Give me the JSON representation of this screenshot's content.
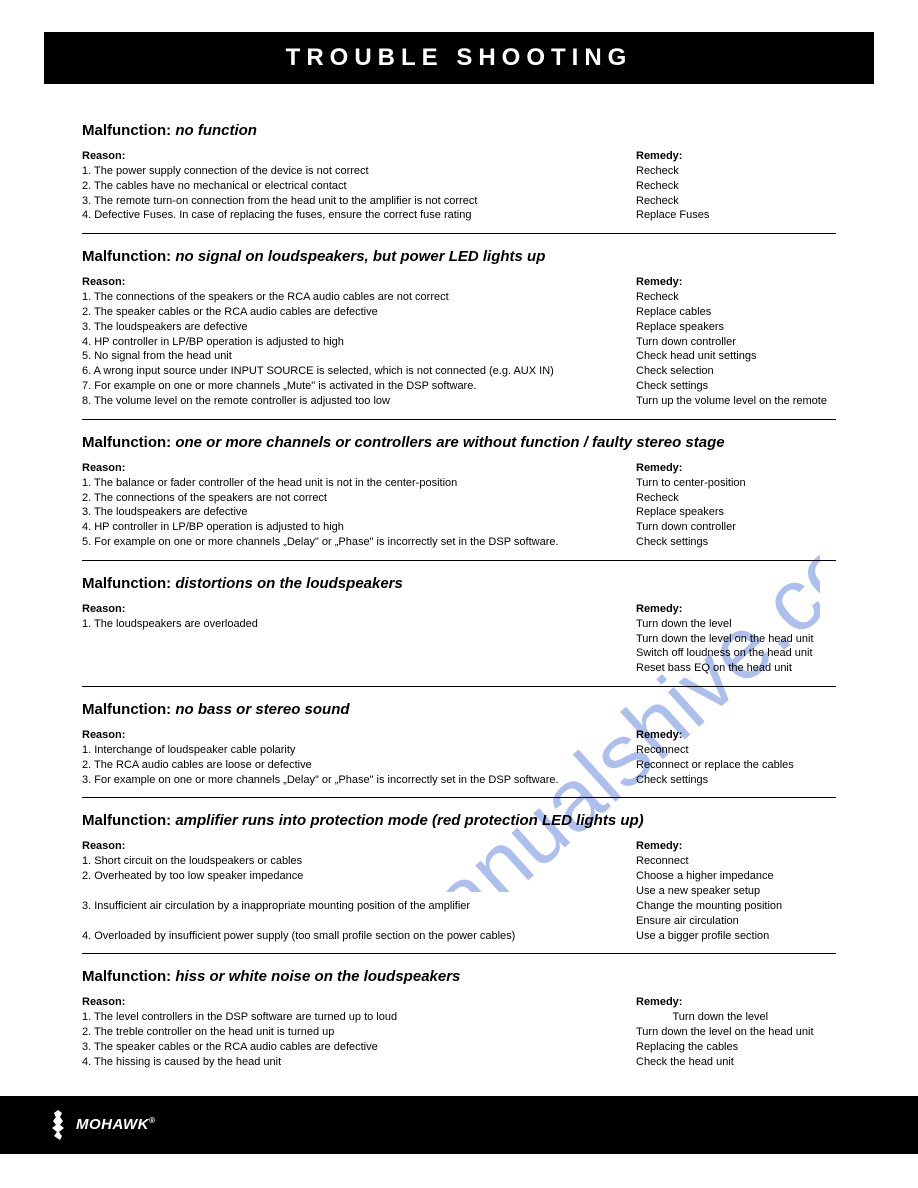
{
  "header": {
    "title": "TROUBLE SHOOTING"
  },
  "labels": {
    "malfunction_prefix": "Malfunction: ",
    "reason_head": "Reason:",
    "remedy_head": "Remedy:"
  },
  "sections": [
    {
      "title": "no function",
      "rows": [
        {
          "reason": "1. The power supply connection of the device is not correct",
          "remedy": "Recheck"
        },
        {
          "reason": "2. The cables have no mechanical or electrical contact",
          "remedy": "Recheck"
        },
        {
          "reason": "3. The remote turn-on connection from the head unit to the amplifier is not correct",
          "remedy": "Recheck"
        },
        {
          "reason": "4. Defective Fuses. In case of replacing the fuses, ensure the correct fuse rating",
          "remedy": "Replace Fuses"
        }
      ]
    },
    {
      "title": "no signal on loudspeakers, but power LED lights up",
      "rows": [
        {
          "reason": "1. The connections of the speakers or the RCA audio cables are not correct",
          "remedy": "Recheck"
        },
        {
          "reason": "2. The speaker cables or the RCA audio cables are defective",
          "remedy": "Replace cables"
        },
        {
          "reason": "3. The loudspeakers are defective",
          "remedy": "Replace speakers"
        },
        {
          "reason": "4. HP controller in LP/BP operation is adjusted to high",
          "remedy": "Turn down controller"
        },
        {
          "reason": "5. No signal from the head unit",
          "remedy": "Check head unit settings"
        },
        {
          "reason": "6. A wrong input source under INPUT SOURCE is selected, which is not connected (e.g. AUX IN)",
          "remedy": "Check selection"
        },
        {
          "reason": "7. For example on one or more channels „Mute\" is activated in the DSP software.",
          "remedy": "Check settings"
        },
        {
          "reason": "8. The volume level on the remote controller is adjusted too low",
          "remedy": "Turn up the volume level on the remote"
        }
      ]
    },
    {
      "title": "one or more channels or controllers are without function / faulty stereo stage",
      "rows": [
        {
          "reason": "1. The balance or fader controller of the head unit is not in the center-position",
          "remedy": "Turn to center-position"
        },
        {
          "reason": "2. The connections of the speakers are not correct",
          "remedy": "Recheck"
        },
        {
          "reason": "3. The loudspeakers are defective",
          "remedy": "Replace speakers"
        },
        {
          "reason": "4. HP controller in LP/BP operation is adjusted to high",
          "remedy": "Turn down controller"
        },
        {
          "reason": "5. For example on one or more channels „Delay\" or „Phase\" is incorrectly set in the DSP software.",
          "remedy": "Check settings"
        }
      ]
    },
    {
      "title": "distortions on the loudspeakers",
      "rows": [
        {
          "reason": "1. The loudspeakers are overloaded",
          "remedy": "Turn down the level"
        },
        {
          "reason": "",
          "remedy": "Turn down the level on the head unit"
        },
        {
          "reason": "",
          "remedy": "Switch off loudness on the head unit"
        },
        {
          "reason": "",
          "remedy": "Reset bass EQ on the head unit"
        }
      ]
    },
    {
      "title": "no bass or stereo sound",
      "rows": [
        {
          "reason": "1. Interchange of loudspeaker cable polarity",
          "remedy": "Reconnect"
        },
        {
          "reason": "2. The RCA audio cables are loose or defective",
          "remedy": "Reconnect or replace the cables"
        },
        {
          "reason": "3. For example on one or more channels „Delay\" or „Phase\" is incorrectly set in the DSP software.",
          "remedy": "Check settings"
        }
      ]
    },
    {
      "title": "amplifier runs into protection mode (red protection LED lights up)",
      "rows": [
        {
          "reason": "1. Short circuit on the loudspeakers or cables",
          "remedy": "Reconnect"
        },
        {
          "reason": "2. Overheated by too low speaker impedance",
          "remedy": "Choose a higher impedance"
        },
        {
          "reason": "",
          "remedy": "Use a new speaker setup"
        },
        {
          "reason": "3. Insufficient air circulation by a inappropriate mounting position of the amplifier",
          "remedy": "Change the mounting position"
        },
        {
          "reason": "",
          "remedy": "Ensure air circulation"
        },
        {
          "reason": "4. Overloaded by insufficient power supply (too small profile section on the power cables)",
          "remedy": "Use a bigger profile section"
        }
      ]
    },
    {
      "title": "hiss or white noise on the loudspeakers",
      "rows": [
        {
          "reason": "1. The level controllers in the DSP software are turned up to loud",
          "remedy": "            Turn down the level"
        },
        {
          "reason": "2. The treble controller on the head unit is turned up",
          "remedy": "Turn down the level on the head unit"
        },
        {
          "reason": "3. The speaker cables or the RCA audio cables are defective",
          "remedy": "Replacing the cables"
        },
        {
          "reason": "4. The hissing is caused by the head unit",
          "remedy": "Check the head unit"
        }
      ],
      "no_divider": true
    }
  ],
  "footer": {
    "brand": "MOHAWK",
    "reg": "®"
  },
  "watermark": {
    "text": "manualshive.co",
    "color": "#6b8de0",
    "opacity": 0.6
  },
  "colors": {
    "bg": "#ffffff",
    "text": "#000000",
    "bar_bg": "#000000",
    "bar_fg": "#ffffff"
  }
}
